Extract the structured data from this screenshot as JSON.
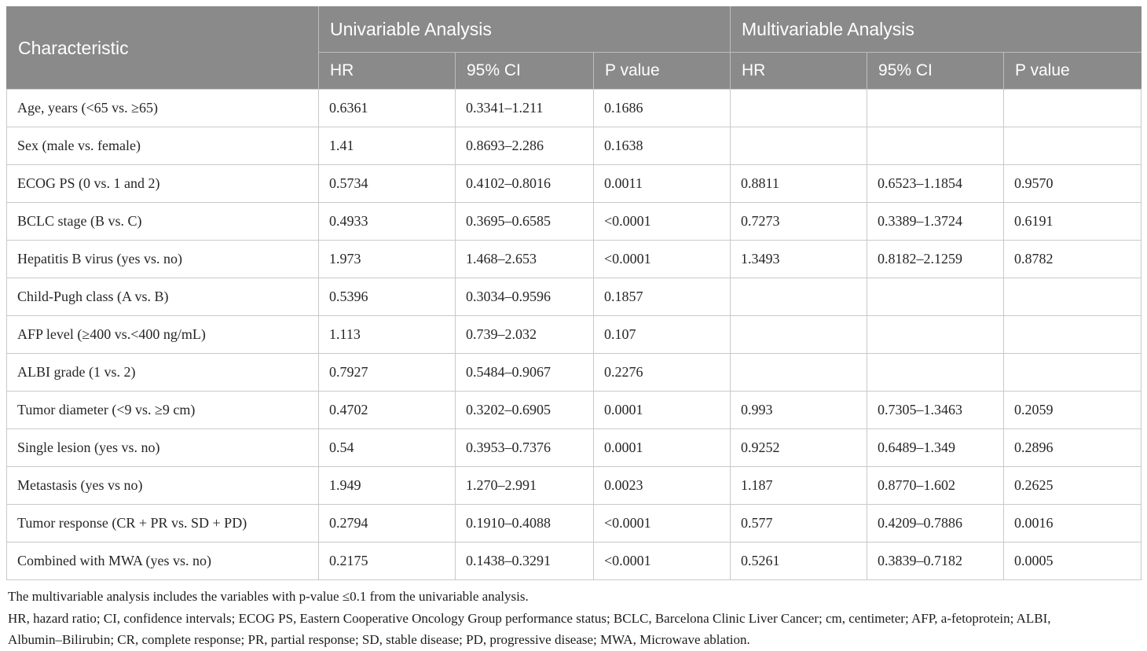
{
  "table": {
    "header": {
      "characteristic": "Characteristic",
      "univariable": "Univariable Analysis",
      "multivariable": "Multivariable Analysis",
      "sub": {
        "uni_hr": "HR",
        "uni_ci": "95% CI",
        "uni_p": "P value",
        "multi_hr": "HR",
        "multi_ci": "95% CI",
        "multi_p": "P value"
      }
    },
    "rows": [
      [
        "Age, years (<65 vs. ≥65)",
        "0.6361",
        "0.3341–1.211",
        "0.1686",
        "",
        "",
        ""
      ],
      [
        "Sex (male vs. female)",
        "1.41",
        "0.8693–2.286",
        "0.1638",
        "",
        "",
        ""
      ],
      [
        "ECOG PS (0 vs. 1 and 2)",
        "0.5734",
        "0.4102–0.8016",
        "0.0011",
        "0.8811",
        "0.6523–1.1854",
        "0.9570"
      ],
      [
        "BCLC stage (B vs. C)",
        "0.4933",
        "0.3695–0.6585",
        "<0.0001",
        "0.7273",
        "0.3389–1.3724",
        "0.6191"
      ],
      [
        "Hepatitis B virus (yes vs. no)",
        "1.973",
        "1.468–2.653",
        "<0.0001",
        "1.3493",
        "0.8182–2.1259",
        "0.8782"
      ],
      [
        "Child-Pugh class (A vs. B)",
        "0.5396",
        "0.3034–0.9596",
        "0.1857",
        "",
        "",
        ""
      ],
      [
        "AFP level (≥400 vs.<400 ng/mL)",
        "1.113",
        "0.739–2.032",
        "0.107",
        "",
        "",
        ""
      ],
      [
        "ALBI grade (1 vs. 2)",
        "0.7927",
        "0.5484–0.9067",
        "0.2276",
        "",
        "",
        ""
      ],
      [
        "Tumor diameter (<9 vs. ≥9 cm)",
        "0.4702",
        "0.3202–0.6905",
        "0.0001",
        "0.993",
        "0.7305–1.3463",
        "0.2059"
      ],
      [
        "Single lesion (yes vs. no)",
        "0.54",
        "0.3953–0.7376",
        "0.0001",
        "0.9252",
        "0.6489–1.349",
        "0.2896"
      ],
      [
        "Metastasis (yes vs no)",
        "1.949",
        "1.270–2.991",
        "0.0023",
        "1.187",
        "0.8770–1.602",
        "0.2625"
      ],
      [
        "Tumor response (CR + PR vs. SD + PD)",
        "0.2794",
        "0.1910–0.4088",
        "<0.0001",
        "0.577",
        "0.4209–0.7886",
        "0.0016"
      ],
      [
        "Combined with MWA (yes vs. no)",
        "0.2175",
        "0.1438–0.3291",
        "<0.0001",
        "0.5261",
        "0.3839–0.7182",
        "0.0005"
      ]
    ],
    "footnotes": [
      "The multivariable analysis includes the variables with p-value ≤0.1 from the univariable analysis.",
      "HR, hazard ratio; CI, confidence intervals; ECOG PS, Eastern Cooperative Oncology Group performance status; BCLC, Barcelona Clinic Liver Cancer; cm, centimeter; AFP, a-fetoprotein; ALBI,",
      "Albumin–Bilirubin; CR, complete response; PR, partial response; SD, stable disease; PD, progressive disease; MWA, Microwave ablation."
    ]
  },
  "colors": {
    "header_bg": "#8a8a8a",
    "header_text": "#ffffff",
    "header_divider": "#bdbdbd",
    "body_border": "#c9c9c9",
    "outer_border": "#8a8a8a",
    "body_text": "#262626"
  }
}
